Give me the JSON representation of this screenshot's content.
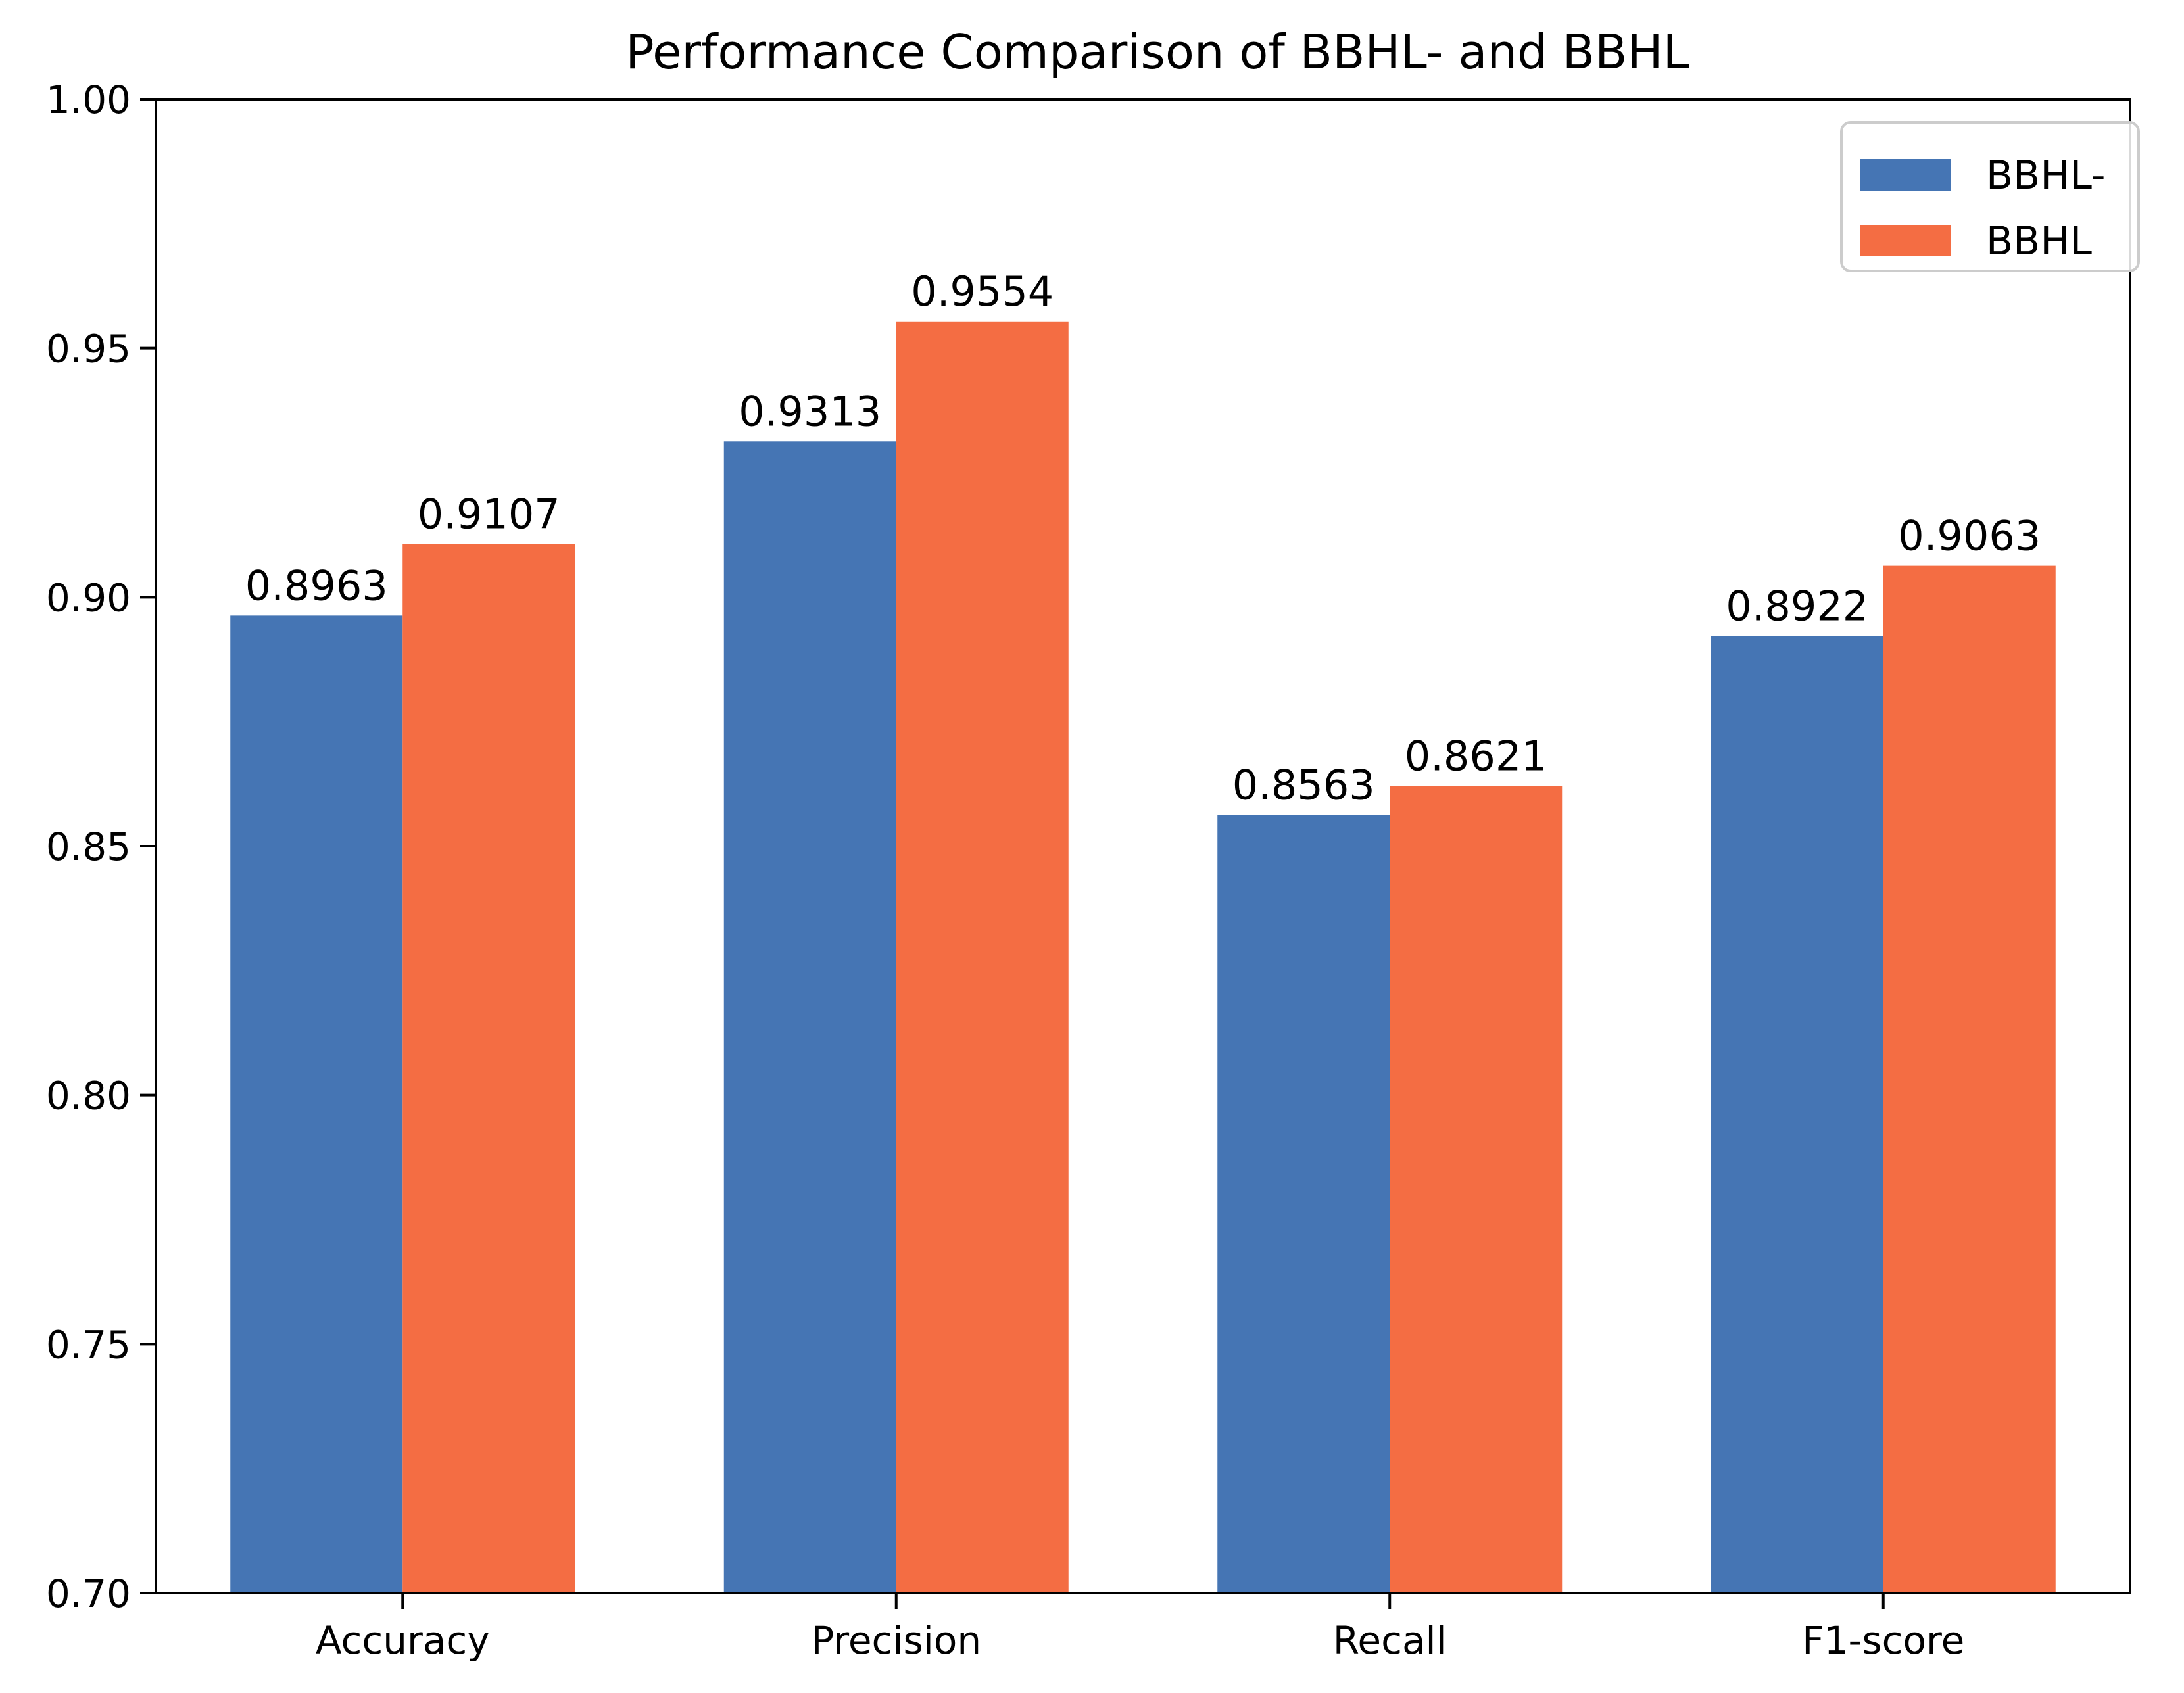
{
  "chart_data": {
    "type": "bar",
    "title": "Performance Comparison of BBHL- and BBHL",
    "xlabel": "",
    "ylabel": "",
    "categories": [
      "Accuracy",
      "Precision",
      "Recall",
      "F1-score"
    ],
    "series": [
      {
        "name": "BBHL-",
        "color": "#4575b4",
        "values": [
          0.8963,
          0.9313,
          0.8563,
          0.8922
        ],
        "labels": [
          "0.8963",
          "0.9313",
          "0.8563",
          "0.8922"
        ]
      },
      {
        "name": "BBHL",
        "color": "#f46d43",
        "values": [
          0.9107,
          0.9554,
          0.8621,
          0.9063
        ],
        "labels": [
          "0.9107",
          "0.9554",
          "0.8621",
          "0.9063"
        ]
      }
    ],
    "ylim": [
      0.7,
      1.0
    ],
    "yticks": [
      0.7,
      0.75,
      0.8,
      0.85,
      0.9,
      0.95,
      1.0
    ],
    "ytick_labels": [
      "0.70",
      "0.75",
      "0.80",
      "0.85",
      "0.90",
      "0.95",
      "1.00"
    ],
    "grid": false,
    "legend_position": "top-right"
  }
}
